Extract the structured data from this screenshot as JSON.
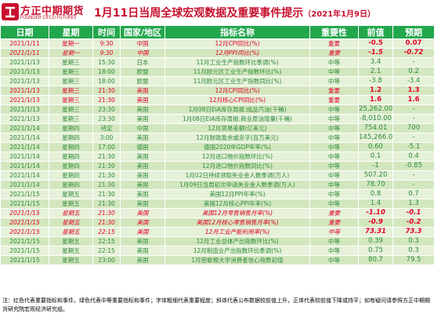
{
  "header": {
    "logo_cn": "方正中期期货",
    "logo_en": "FOUNDER CIFCO FUTURES",
    "title": "1月11日当周全球宏观数据及重要事件提示",
    "title_date": "（2021年1月9日）"
  },
  "table": {
    "columns": [
      "日期",
      "星期",
      "时间",
      "国家/地区",
      "指标名称",
      "重要性",
      "前值",
      "预期"
    ],
    "rows": [
      {
        "date": "2021/1/11",
        "weekday": "星期一",
        "time": "9:30",
        "region": "中国",
        "indicator": "12月CPI同比(%)",
        "importance": "重要",
        "prev": "-0.5",
        "forecast": "0.07",
        "level": "hi"
      },
      {
        "date": "2021/1/11",
        "weekday": "星期一",
        "time": "9:30",
        "region": "中国",
        "indicator": "12月PPI同比(%)",
        "importance": "重要",
        "prev": "-1.5",
        "forecast": "-0.72",
        "level": "hi",
        "italic": true
      },
      {
        "date": "2021/1/13",
        "weekday": "星期三",
        "time": "15:30",
        "region": "日本",
        "indicator": "11月工业生产指数环比季调(%)",
        "importance": "中等",
        "prev": "3.4",
        "forecast": "-",
        "level": "mid"
      },
      {
        "date": "2021/1/13",
        "weekday": "星期三",
        "time": "18:00",
        "region": "欧盟",
        "indicator": "11月欧元区工业生产指数环比(%)",
        "importance": "中等",
        "prev": "2.1",
        "forecast": "0.2",
        "level": "mid"
      },
      {
        "date": "2021/1/13",
        "weekday": "星期三",
        "time": "18:00",
        "region": "欧盟",
        "indicator": "11月欧元区工业生产指数同比(%)",
        "importance": "中等",
        "prev": "-3.8",
        "forecast": "-3.4",
        "level": "mid"
      },
      {
        "date": "2021/1/13",
        "weekday": "星期三",
        "time": "21:30",
        "region": "美国",
        "indicator": "12月CPI同比(%)",
        "importance": "重要",
        "prev": "1.2",
        "forecast": "1.3",
        "level": "hi"
      },
      {
        "date": "2021/1/13",
        "weekday": "星期三",
        "time": "21:30",
        "region": "美国",
        "indicator": "12月核心CPI同比(%)",
        "importance": "重要",
        "prev": "1.6",
        "forecast": "1.6",
        "level": "hi"
      },
      {
        "date": "2021/1/13",
        "weekday": "星期三",
        "time": "23:30",
        "region": "美国",
        "indicator": "1月08日EIA库存周报:成品汽油(千桶)",
        "importance": "中等",
        "prev": "25,262.00",
        "forecast": "-",
        "level": "mid"
      },
      {
        "date": "2021/1/13",
        "weekday": "星期三",
        "time": "23:30",
        "region": "美国",
        "indicator": "1月08日EIA库存周报:商业原油增量(千桶)",
        "importance": "中等",
        "prev": "-8,010.00",
        "forecast": "-",
        "level": "mid"
      },
      {
        "date": "2021/1/14",
        "weekday": "星期四",
        "time": "待定",
        "region": "中国",
        "indicator": "12月贸易差额(亿美元)",
        "importance": "中等",
        "prev": "754.01",
        "forecast": "700",
        "level": "mid"
      },
      {
        "date": "2021/1/14",
        "weekday": "星期四",
        "time": "3:00",
        "region": "美国",
        "indicator": "12月财政盈余或赤字(百万美元)",
        "importance": "中等",
        "prev": "145,266.00",
        "forecast": "-",
        "level": "mid"
      },
      {
        "date": "2021/1/14",
        "weekday": "星期四",
        "time": "17:00",
        "region": "德国",
        "indicator": "德国2020年GDP年率(%)",
        "importance": "中等",
        "prev": "0.60",
        "forecast": "-5.1",
        "level": "mid"
      },
      {
        "date": "2021/1/14",
        "weekday": "星期四",
        "time": "21:30",
        "region": "美国",
        "indicator": "12月进口物价指数环比(%)",
        "importance": "中等",
        "prev": "0.1",
        "forecast": "0.4",
        "level": "mid"
      },
      {
        "date": "2021/1/14",
        "weekday": "星期四",
        "time": "21:30",
        "region": "美国",
        "indicator": "12月进口物价指数同比(%)",
        "importance": "中等",
        "prev": "-1",
        "forecast": "-0.85",
        "level": "mid"
      },
      {
        "date": "2021/1/14",
        "weekday": "星期四",
        "time": "21:30",
        "region": "美国",
        "indicator": "1月02日持续领取失业金人数季调(万人)",
        "importance": "中等",
        "prev": "507.20",
        "forecast": "-",
        "level": "mid"
      },
      {
        "date": "2021/1/14",
        "weekday": "星期四",
        "time": "21:30",
        "region": "美国",
        "indicator": "1月09日当周初次申请失业金人数季调(万人)",
        "importance": "中等",
        "prev": "78.70",
        "forecast": "-",
        "level": "mid"
      },
      {
        "date": "2021/1/15",
        "weekday": "星期五",
        "time": "21:30",
        "region": "美国",
        "indicator": "美国12月PPI年率(%)",
        "importance": "中等",
        "prev": "0.8",
        "forecast": "0.7",
        "level": "mid"
      },
      {
        "date": "2021/1/15",
        "weekday": "星期五",
        "time": "21:30",
        "region": "美国",
        "indicator": "美国12月核心PPI年率(%)",
        "importance": "中等",
        "prev": "1.4",
        "forecast": "1.3",
        "level": "mid"
      },
      {
        "date": "2021/1/15",
        "weekday": "星期五",
        "time": "21:30",
        "region": "美国",
        "indicator": "美国12月零售销售月率(%)",
        "importance": "重要",
        "prev": "-1.10",
        "forecast": "-0.1",
        "level": "hi",
        "italic": true
      },
      {
        "date": "2021/1/15",
        "weekday": "星期五",
        "time": "21:30",
        "region": "美国",
        "indicator": "美国12月核心零售销售月率(%)",
        "importance": "重要",
        "prev": "-0.9",
        "forecast": "-0.2",
        "level": "hi",
        "italic": true
      },
      {
        "date": "2021/1/15",
        "weekday": "星期五",
        "time": "22:15",
        "region": "美国",
        "indicator": "12月工业产能利用率(%)",
        "importance": "中等",
        "prev": "73.31",
        "forecast": "73.3",
        "level": "hi",
        "italic": true
      },
      {
        "date": "2021/1/15",
        "weekday": "星期五",
        "time": "22:15",
        "region": "美国",
        "indicator": "12月工业总体产出指数环比(%)",
        "importance": "中等",
        "prev": "0.39",
        "forecast": "0.3",
        "level": "mid"
      },
      {
        "date": "2021/1/15",
        "weekday": "星期五",
        "time": "22:15",
        "region": "美国",
        "indicator": "12月制造业产出指数环比季调(%)",
        "importance": "中等",
        "prev": "0.75",
        "forecast": "0.3",
        "level": "mid"
      },
      {
        "date": "2021/1/15",
        "weekday": "星期五",
        "time": "23:00",
        "region": "美国",
        "indicator": "1月密歇根大学消费者信心指数初值",
        "importance": "中等",
        "prev": "80.7",
        "forecast": "79.5",
        "level": "mid"
      }
    ]
  },
  "footer": {
    "note": "注：红色代表重要指标和事件，绿色代表中等重要指标和事件；字体粗细代表重要程度；斜体代表公布数据较前值上升，正体代表较前值下降或持平；如有疑问请参照方正中期期货研究院宏观经济研究组。"
  },
  "colors": {
    "brand_red": "#c8102e",
    "header_green": "#23a74d",
    "important_red": "#e4002b",
    "medium_green": "#2c8a38",
    "row_light": "#e5f1d8",
    "row_dark": "#d3e7bf"
  }
}
